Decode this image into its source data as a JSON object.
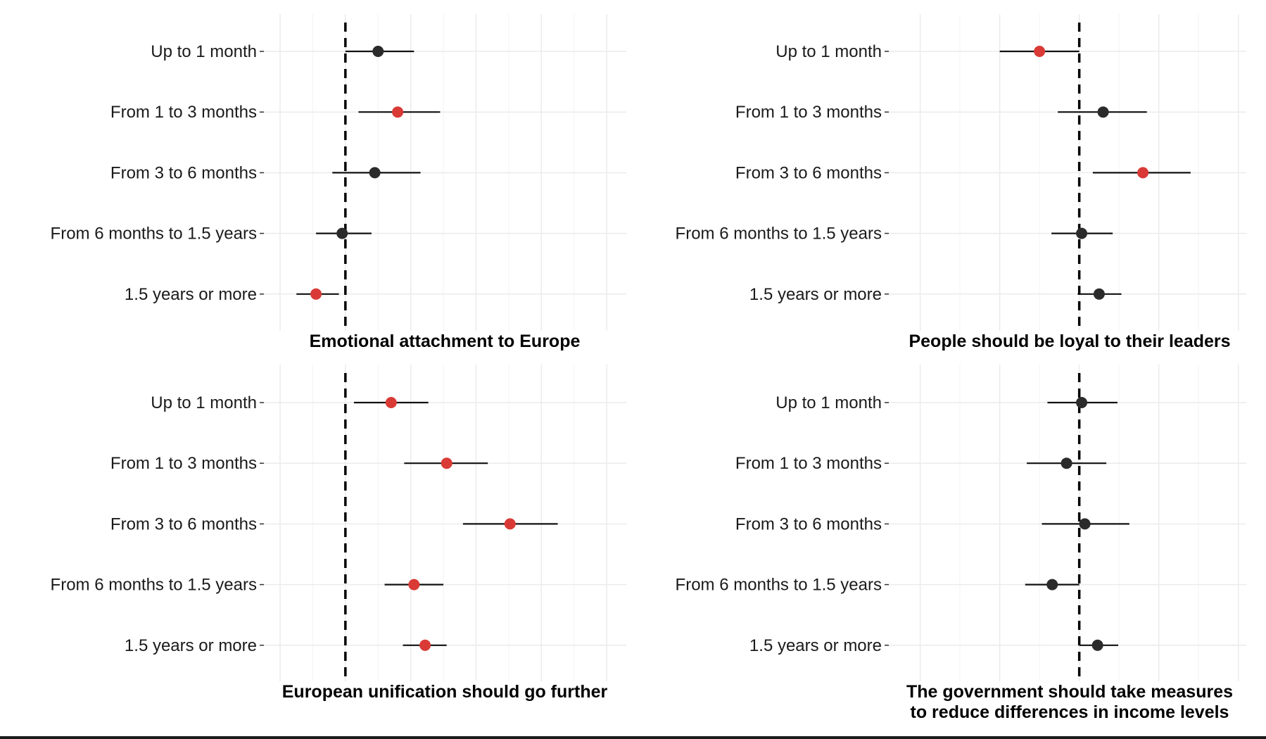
{
  "chart_data": [
    {
      "type": "scatter",
      "subtype": "coefficient-plot",
      "title": "Emotional attachment to Europe",
      "categories": [
        "Up to 1 month",
        "From 1 to 3 months",
        "From 3 to 6 months",
        "From 6 months to 1.5 years",
        "1.5 years or more"
      ],
      "estimates": [
        0.05,
        0.08,
        0.045,
        -0.005,
        -0.045
      ],
      "ci_low": [
        0.0,
        0.02,
        -0.02,
        -0.045,
        -0.075
      ],
      "ci_high": [
        0.105,
        0.145,
        0.115,
        0.04,
        -0.01
      ],
      "significant": [
        false,
        true,
        false,
        false,
        true
      ],
      "reference_line": 0,
      "xlim": [
        -0.1,
        0.43
      ],
      "xgrid": [
        -0.1,
        0.0,
        0.1,
        0.2,
        0.3,
        0.4
      ]
    },
    {
      "type": "scatter",
      "subtype": "coefficient-plot",
      "title": "People should be loyal to their leaders",
      "categories": [
        "Up to 1 month",
        "From 1 to 3 months",
        "From 3 to 6 months",
        "From 6 months to 1.5 years",
        "1.5 years or more"
      ],
      "estimates": [
        -0.05,
        0.03,
        0.08,
        0.003,
        0.025
      ],
      "ci_low": [
        -0.1,
        -0.027,
        0.017,
        -0.035,
        -0.002
      ],
      "ci_high": [
        0.0,
        0.085,
        0.14,
        0.042,
        0.053
      ],
      "significant": [
        true,
        false,
        true,
        false,
        false
      ],
      "reference_line": 0,
      "xlim": [
        -0.22,
        0.21
      ],
      "xgrid": [
        -0.2,
        -0.1,
        0.0,
        0.1,
        0.2
      ]
    },
    {
      "type": "scatter",
      "subtype": "coefficient-plot",
      "title": "European unification should go further",
      "categories": [
        "Up to 1 month",
        "From 1 to 3 months",
        "From 3 to 6 months",
        "From 6 months to 1.5 years",
        "1.5 years or more"
      ],
      "estimates": [
        0.07,
        0.155,
        0.252,
        0.105,
        0.122
      ],
      "ci_low": [
        0.013,
        0.09,
        0.18,
        0.06,
        0.088
      ],
      "ci_high": [
        0.127,
        0.218,
        0.325,
        0.15,
        0.155
      ],
      "significant": [
        true,
        true,
        true,
        true,
        true
      ],
      "reference_line": 0,
      "xlim": [
        -0.1,
        0.43
      ],
      "xgrid": [
        -0.1,
        0.0,
        0.1,
        0.2,
        0.3,
        0.4
      ]
    },
    {
      "type": "scatter",
      "subtype": "coefficient-plot",
      "title": "The government should take measures\nto reduce differences in income levels",
      "categories": [
        "Up to 1 month",
        "From 1 to 3 months",
        "From 3 to 6 months",
        "From 6 months to 1.5 years",
        "1.5 years or more"
      ],
      "estimates": [
        0.003,
        -0.016,
        0.007,
        -0.034,
        0.023
      ],
      "ci_low": [
        -0.04,
        -0.066,
        -0.047,
        -0.068,
        0.0
      ],
      "ci_high": [
        0.048,
        0.034,
        0.063,
        0.0,
        0.049
      ],
      "significant": [
        false,
        false,
        false,
        false,
        false
      ],
      "reference_line": 0,
      "xlim": [
        -0.22,
        0.21
      ],
      "xgrid": [
        -0.2,
        -0.1,
        0.0,
        0.1,
        0.2
      ]
    }
  ],
  "colors": {
    "significant": "#d93a36",
    "not_significant": "#2b2b2b",
    "grid": "#ebebeb",
    "line": "#000000",
    "text": "#1a1a1a"
  }
}
